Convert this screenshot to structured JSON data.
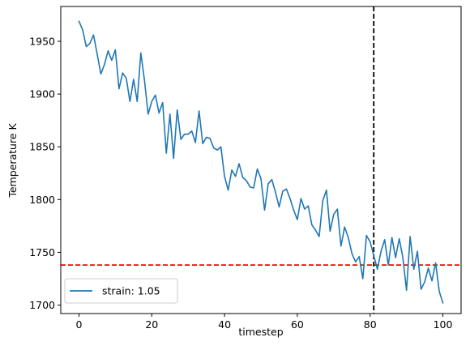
{
  "chart_data": {
    "type": "line",
    "title": "",
    "xlabel": "timestep",
    "ylabel": "Temperature K",
    "xlim": [
      -5,
      105
    ],
    "ylim": [
      1692,
      1983
    ],
    "xticks": [
      0,
      20,
      40,
      60,
      80,
      100
    ],
    "yticks": [
      1700,
      1750,
      1800,
      1850,
      1900,
      1950
    ],
    "grid": false,
    "legend": {
      "position": "lower-left"
    },
    "series": [
      {
        "name": "strain: 1.05",
        "color": "#1f77b4",
        "x": [
          0,
          1,
          2,
          3,
          4,
          5,
          6,
          7,
          8,
          9,
          10,
          11,
          12,
          13,
          14,
          15,
          16,
          17,
          18,
          19,
          20,
          21,
          22,
          23,
          24,
          25,
          26,
          27,
          28,
          29,
          30,
          31,
          32,
          33,
          34,
          35,
          36,
          37,
          38,
          39,
          40,
          41,
          42,
          43,
          44,
          45,
          46,
          47,
          48,
          49,
          50,
          51,
          52,
          53,
          54,
          55,
          56,
          57,
          58,
          59,
          60,
          61,
          62,
          63,
          64,
          65,
          66,
          67,
          68,
          69,
          70,
          71,
          72,
          73,
          74,
          75,
          76,
          77,
          78,
          79,
          80,
          81,
          82,
          83,
          84,
          85,
          86,
          87,
          88,
          89,
          90,
          91,
          92,
          93,
          94,
          95,
          96,
          97,
          98,
          99,
          100
        ],
        "y": [
          1969,
          1961,
          1945,
          1948,
          1956,
          1938,
          1919,
          1928,
          1941,
          1932,
          1942,
          1905,
          1920,
          1915,
          1893,
          1914,
          1893,
          1939,
          1913,
          1881,
          1893,
          1899,
          1882,
          1892,
          1844,
          1881,
          1839,
          1885,
          1857,
          1862,
          1862,
          1865,
          1854,
          1884,
          1853,
          1859,
          1858,
          1849,
          1847,
          1850,
          1822,
          1809,
          1828,
          1822,
          1834,
          1821,
          1818,
          1812,
          1811,
          1829,
          1820,
          1790,
          1815,
          1819,
          1807,
          1793,
          1808,
          1810,
          1801,
          1790,
          1781,
          1801,
          1791,
          1794,
          1776,
          1771,
          1765,
          1799,
          1809,
          1770,
          1786,
          1791,
          1756,
          1774,
          1764,
          1749,
          1741,
          1746,
          1725,
          1766,
          1760,
          1747,
          1734,
          1751,
          1762,
          1738,
          1764,
          1745,
          1763,
          1745,
          1714,
          1765,
          1734,
          1751,
          1715,
          1722,
          1735,
          1723,
          1740,
          1713,
          1702
        ]
      }
    ],
    "reference_lines": [
      {
        "orientation": "horizontal",
        "value": 1738,
        "color": "#ff0000",
        "style": "dashed"
      },
      {
        "orientation": "vertical",
        "value": 81,
        "color": "#000000",
        "style": "dashed"
      }
    ]
  }
}
